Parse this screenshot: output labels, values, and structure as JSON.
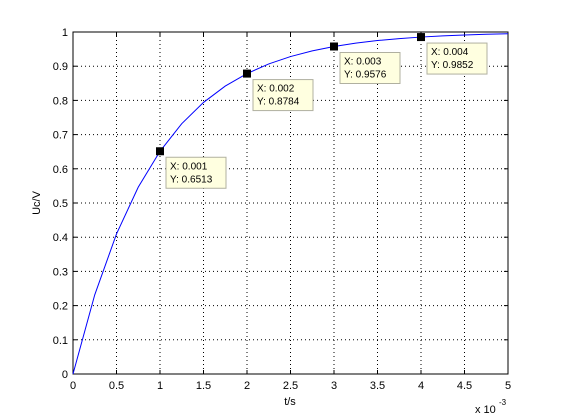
{
  "chart_data": {
    "type": "line",
    "x_label": "t/s",
    "y_label": "Uc/V",
    "x_exponent_base": "x 10",
    "x_exponent": "-3",
    "x": [
      0,
      0.00025,
      0.0005,
      0.00075,
      0.001,
      0.00125,
      0.0015,
      0.00175,
      0.002,
      0.00225,
      0.0025,
      0.00275,
      0.003,
      0.00325,
      0.0035,
      0.00375,
      0.004,
      0.00425,
      0.0045,
      0.00475,
      0.005
    ],
    "series": [
      {
        "color": "#0000ff",
        "values": [
          0,
          0.2316,
          0.4095,
          0.5463,
          0.6513,
          0.732,
          0.7941,
          0.8418,
          0.8784,
          0.9066,
          0.9282,
          0.9448,
          0.9576,
          0.9674,
          0.975,
          0.9808,
          0.9852,
          0.9886,
          0.9913,
          0.9933,
          0.9948
        ]
      }
    ],
    "datatips": {
      "x": [
        0.001,
        0.002,
        0.003,
        0.004
      ],
      "values": [
        0.6513,
        0.8784,
        0.9576,
        0.9852
      ],
      "x_labels": [
        "X: 0.001",
        "X: 0.002",
        "X: 0.003",
        "X: 0.004"
      ],
      "value_labels": [
        "Y: 0.6513",
        "Y: 0.8784",
        "Y: 0.9576",
        "Y: 0.9852"
      ]
    },
    "xlim": [
      0,
      0.005
    ],
    "ylim": [
      0,
      1
    ],
    "xticks": [
      {
        "value": 0,
        "label": "0"
      },
      {
        "value": 0.0005,
        "label": "0.5"
      },
      {
        "value": 0.001,
        "label": "1"
      },
      {
        "value": 0.0015,
        "label": "1.5"
      },
      {
        "value": 0.002,
        "label": "2"
      },
      {
        "value": 0.0025,
        "label": "2.5"
      },
      {
        "value": 0.003,
        "label": "3"
      },
      {
        "value": 0.0035,
        "label": "3.5"
      },
      {
        "value": 0.004,
        "label": "4"
      },
      {
        "value": 0.0045,
        "label": "4.5"
      },
      {
        "value": 0.005,
        "label": "5"
      }
    ],
    "yticks": [
      0,
      0.1,
      0.2,
      0.3,
      0.4,
      0.5,
      0.6,
      0.7,
      0.8,
      0.9,
      1
    ],
    "grid": true
  }
}
